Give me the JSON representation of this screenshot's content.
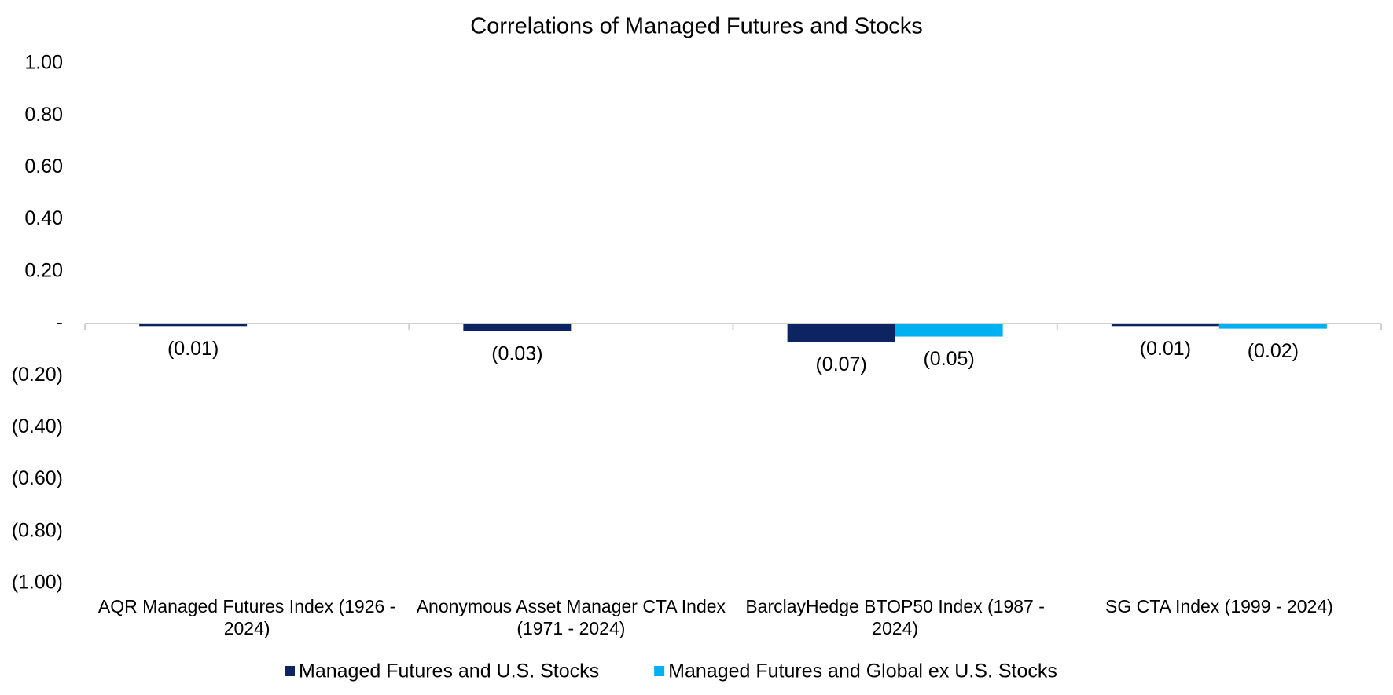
{
  "chart_data": {
    "type": "bar",
    "title": "Correlations of Managed Futures and Stocks",
    "categories": [
      "AQR Managed Futures Index (1926 - 2024)",
      "Anonymous Asset Manager CTA Index (1971 - 2024)",
      "BarclayHedge BTOP50 Index (1987 - 2024)",
      "SG CTA Index (1999 - 2024)"
    ],
    "series": [
      {
        "name": "Managed Futures and U.S. Stocks",
        "color": "#0c2461",
        "values": [
          -0.01,
          -0.03,
          -0.07,
          -0.01
        ],
        "value_labels": [
          "(0.01)",
          "(0.03)",
          "(0.07)",
          "(0.01)"
        ]
      },
      {
        "name": "Managed Futures and Global ex U.S. Stocks",
        "color": "#00b0f0",
        "values": [
          null,
          null,
          -0.05,
          -0.02
        ],
        "value_labels": [
          null,
          null,
          "(0.05)",
          "(0.02)"
        ]
      }
    ],
    "ylim": [
      -1,
      1
    ],
    "yticks": [
      {
        "value": 1,
        "label": "1.00"
      },
      {
        "value": 0.8,
        "label": "0.80"
      },
      {
        "value": 0.6,
        "label": "0.60"
      },
      {
        "value": 0.4,
        "label": "0.40"
      },
      {
        "value": 0.2,
        "label": "0.20"
      },
      {
        "value": 0,
        "label": "-"
      },
      {
        "value": -0.2,
        "label": "(0.20)"
      },
      {
        "value": -0.4,
        "label": "(0.40)"
      },
      {
        "value": -0.6,
        "label": "(0.60)"
      },
      {
        "value": -0.8,
        "label": "(0.80)"
      },
      {
        "value": -1,
        "label": "(1.00)"
      }
    ],
    "grid": false,
    "legend": "bottom"
  }
}
